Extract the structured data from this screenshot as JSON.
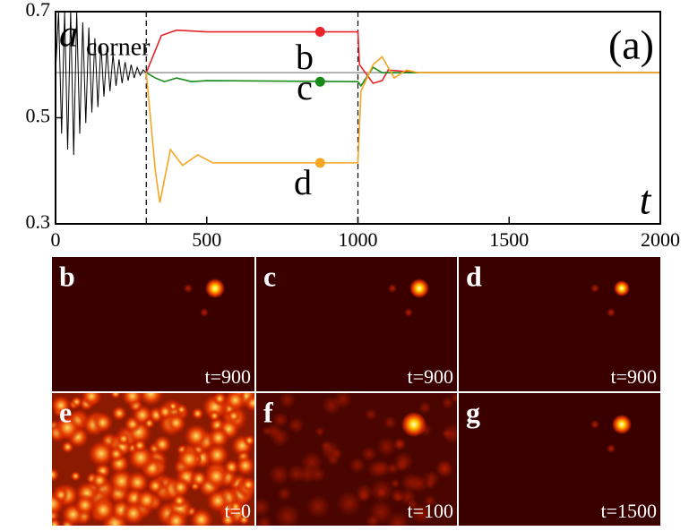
{
  "chart_data": {
    "type": "line",
    "ylabel": "a",
    "ylabel_sub": "corner",
    "xlabel": "t",
    "panel_label": "(a)",
    "xlim": [
      0,
      2000
    ],
    "ylim": [
      0.3,
      0.7
    ],
    "xticks": [
      0,
      500,
      1000,
      1500,
      2000
    ],
    "yticks": [
      0.3,
      0.5,
      0.7
    ],
    "vlines": [
      300,
      1000
    ],
    "reference_line": 0.585,
    "series": [
      {
        "color": "#000000",
        "x": [
          0,
          10,
          20,
          30,
          40,
          50,
          60,
          70,
          80,
          90,
          100,
          110,
          120,
          130,
          140,
          150,
          160,
          170,
          180,
          190,
          200,
          210,
          220,
          230,
          240,
          250,
          260,
          270,
          280,
          290,
          300
        ],
        "values": [
          0.585,
          0.7,
          0.47,
          0.7,
          0.44,
          0.7,
          0.43,
          0.7,
          0.47,
          0.68,
          0.49,
          0.67,
          0.51,
          0.65,
          0.52,
          0.64,
          0.54,
          0.63,
          0.55,
          0.62,
          0.56,
          0.61,
          0.565,
          0.605,
          0.57,
          0.6,
          0.575,
          0.595,
          0.58,
          0.59,
          0.585
        ]
      },
      {
        "label": "b",
        "color": "#e8232a",
        "x": [
          300,
          350,
          400,
          500,
          1000,
          1005,
          1050,
          1080,
          1100,
          1200,
          2000
        ],
        "values": [
          0.585,
          0.655,
          0.665,
          0.662,
          0.662,
          0.6,
          0.565,
          0.57,
          0.59,
          0.585,
          0.585
        ],
        "marker": {
          "x": 875,
          "value": 0.662
        }
      },
      {
        "label": "c",
        "color": "#1a8a1a",
        "x": [
          300,
          330,
          360,
          400,
          450,
          500,
          1000,
          1010,
          1050,
          1080,
          2000
        ],
        "values": [
          0.585,
          0.575,
          0.568,
          0.575,
          0.568,
          0.57,
          0.568,
          0.56,
          0.595,
          0.585,
          0.585
        ],
        "marker": {
          "x": 875,
          "value": 0.568
        }
      },
      {
        "label": "d",
        "color": "#f5a623",
        "x": [
          300,
          330,
          345,
          380,
          420,
          470,
          520,
          1000,
          1010,
          1050,
          1080,
          1120,
          1160,
          1200,
          2000
        ],
        "values": [
          0.585,
          0.4,
          0.34,
          0.44,
          0.41,
          0.43,
          0.415,
          0.415,
          0.55,
          0.6,
          0.615,
          0.575,
          0.59,
          0.585,
          0.585
        ],
        "marker": {
          "x": 875,
          "value": 0.415
        }
      }
    ]
  },
  "panels": [
    {
      "label": "b",
      "time": "t=900"
    },
    {
      "label": "c",
      "time": "t=900"
    },
    {
      "label": "d",
      "time": "t=900"
    },
    {
      "label": "e",
      "time": "t=0"
    },
    {
      "label": "f",
      "time": "t=100"
    },
    {
      "label": "g",
      "time": "t=1500"
    }
  ]
}
